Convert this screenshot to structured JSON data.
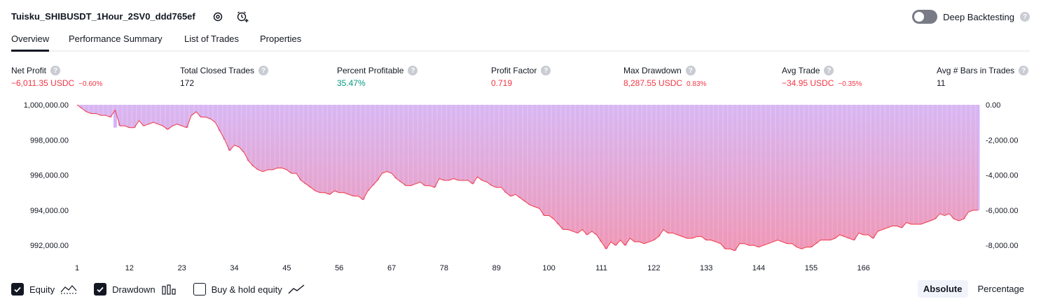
{
  "header": {
    "strategy_name": "Tuisku_SHIBUSDT_1Hour_2SV0_ddd765ef",
    "deep_backtesting_label": "Deep Backtesting",
    "deep_backtesting_enabled": false,
    "help_glyph": "?"
  },
  "tabs": [
    {
      "label": "Overview",
      "active": true
    },
    {
      "label": "Performance Summary",
      "active": false
    },
    {
      "label": "List of Trades",
      "active": false
    },
    {
      "label": "Properties",
      "active": false
    }
  ],
  "metrics": [
    {
      "label": "Net Profit",
      "value": "−6,011.35 USDC",
      "pct": "−0.60%",
      "tone": "neg"
    },
    {
      "label": "Total Closed Trades",
      "value": "172",
      "pct": "",
      "tone": "neutral"
    },
    {
      "label": "Percent Profitable",
      "value": "35.47%",
      "pct": "",
      "tone": "pos"
    },
    {
      "label": "Profit Factor",
      "value": "0.719",
      "pct": "",
      "tone": "neg"
    },
    {
      "label": "Max Drawdown",
      "value": "8,287.55 USDC",
      "pct": "0.83%",
      "tone": "neg"
    },
    {
      "label": "Avg Trade",
      "value": "−34.95 USDC",
      "pct": "−0.35%",
      "tone": "neg"
    },
    {
      "label": "Avg # Bars in Trades",
      "value": "11",
      "pct": "",
      "tone": "neutral"
    }
  ],
  "legend": {
    "equity": {
      "label": "Equity",
      "checked": true
    },
    "drawdown": {
      "label": "Drawdown",
      "checked": true
    },
    "buy_hold": {
      "label": "Buy & hold equity",
      "checked": false
    }
  },
  "mode": {
    "absolute": "Absolute",
    "percentage": "Percentage",
    "selected": "Absolute"
  },
  "icons": [
    "settings-icon",
    "alert-add-icon",
    "help-icon",
    "equity-line-icon",
    "drawdown-bars-icon",
    "buy-hold-line-icon",
    "check-icon"
  ],
  "colors": {
    "negative": "#f23645",
    "positive": "#089981",
    "equity_line": "#f23645",
    "equity_fill_top": "#d8b7f3",
    "equity_fill_bottom": "#f292ac",
    "drawdown_bar": "#d6b4f7"
  },
  "chart_data": {
    "type": "area",
    "x_label_ticks": [
      "1",
      "12",
      "23",
      "34",
      "45",
      "56",
      "67",
      "78",
      "89",
      "100",
      "111",
      "122",
      "133",
      "144",
      "155",
      "166"
    ],
    "left_axis": {
      "ticks": [
        "1,000,000.00",
        "998,000.00",
        "996,000.00",
        "994,000.00",
        "992,000.00"
      ],
      "values": [
        1000000,
        998000,
        996000,
        994000,
        992000
      ]
    },
    "right_axis": {
      "ticks": [
        "0.00",
        "-2,000.00",
        "-4,000.00",
        "-6,000.00",
        "-8,000.00"
      ],
      "values": [
        0,
        -2000,
        -4000,
        -6000,
        -8000
      ]
    },
    "ylim": [
      991500,
      1000000
    ],
    "drawdown_ylim": [
      -8500,
      0
    ],
    "series": [
      {
        "name": "Equity",
        "type": "line",
        "x_start": 1,
        "values": [
          1000000,
          999800,
          999600,
          999500,
          999500,
          999400,
          999400,
          999300,
          999700,
          998800,
          998800,
          998700,
          998700,
          999100,
          998800,
          998900,
          999000,
          998900,
          998800,
          998600,
          998800,
          998900,
          998800,
          998700,
          999400,
          999600,
          999300,
          999300,
          999200,
          999000,
          998500,
          998000,
          997400,
          997700,
          997600,
          997300,
          996800,
          996500,
          996300,
          996200,
          996300,
          996300,
          996400,
          996400,
          996300,
          996100,
          996100,
          995700,
          995500,
          995300,
          995100,
          995000,
          995000,
          994900,
          995100,
          995000,
          995000,
          994900,
          994800,
          994800,
          994600,
          995100,
          995400,
          995700,
          996100,
          996200,
          996100,
          995800,
          995600,
          995400,
          995400,
          995500,
          995600,
          995400,
          995400,
          995300,
          995800,
          995700,
          995700,
          995800,
          995700,
          995700,
          995700,
          995500,
          995900,
          995700,
          995600,
          995400,
          995300,
          995300,
          995000,
          994800,
          994900,
          994700,
          994500,
          994300,
          994200,
          994100,
          993700,
          993700,
          993500,
          993200,
          992900,
          992900,
          992800,
          992700,
          992900,
          992600,
          992800,
          992600,
          992200,
          991800,
          992200,
          992000,
          992300,
          992000,
          992400,
          992200,
          992200,
          992100,
          992200,
          992300,
          992500,
          992900,
          992700,
          992700,
          992600,
          992500,
          992400,
          992400,
          992500,
          992500,
          992300,
          992300,
          992200,
          992100,
          991800,
          991800,
          991700,
          992100,
          992100,
          992000,
          992000,
          991900,
          992000,
          992100,
          992200,
          992300,
          992200,
          992100,
          992100,
          991900,
          991800,
          991900,
          991900,
          992100,
          992300,
          992300,
          992300,
          992400,
          992600,
          992500,
          992400,
          992300,
          992700,
          992600,
          992600,
          992400,
          992800,
          992900,
          993000,
          993100,
          993100,
          993000,
          993300,
          993200,
          993200,
          993200,
          993300,
          993400,
          993500,
          993800,
          993700,
          993800,
          993500,
          993400,
          993500,
          993900,
          994000,
          994000
        ]
      },
      {
        "name": "Drawdown",
        "type": "bar",
        "x_start": 1,
        "values": [
          0,
          -200,
          -400,
          -500,
          -500,
          -600,
          -600,
          -700,
          -1300,
          -1200,
          -1200,
          -1300,
          -1300,
          -900,
          -1200,
          -1100,
          -1000,
          -1100,
          -1200,
          -1400,
          -1200,
          -1100,
          -1200,
          -1300,
          -600,
          -400,
          -700,
          -700,
          -800,
          -1000,
          -1500,
          -2000,
          -2600,
          -2300,
          -2400,
          -2700,
          -3200,
          -3500,
          -3700,
          -3800,
          -3700,
          -3700,
          -3600,
          -3600,
          -3700,
          -3900,
          -3900,
          -4300,
          -4500,
          -4700,
          -4900,
          -5000,
          -5000,
          -5100,
          -4900,
          -5000,
          -5000,
          -5100,
          -5200,
          -5200,
          -5400,
          -4900,
          -4600,
          -4300,
          -3900,
          -3800,
          -3900,
          -4200,
          -4400,
          -4600,
          -4600,
          -4500,
          -4400,
          -4600,
          -4600,
          -4700,
          -4200,
          -4300,
          -4300,
          -4200,
          -4300,
          -4300,
          -4300,
          -4500,
          -4100,
          -4300,
          -4400,
          -4600,
          -4700,
          -4700,
          -5000,
          -5200,
          -5100,
          -5300,
          -5500,
          -5700,
          -5800,
          -5900,
          -6300,
          -6300,
          -6500,
          -6800,
          -7100,
          -7100,
          -7200,
          -7300,
          -7100,
          -7400,
          -7200,
          -7400,
          -7800,
          -8200,
          -7800,
          -8000,
          -7700,
          -8000,
          -7600,
          -7800,
          -7800,
          -7900,
          -7800,
          -7700,
          -7500,
          -7100,
          -7300,
          -7300,
          -7400,
          -7500,
          -7600,
          -7600,
          -7500,
          -7500,
          -7700,
          -7700,
          -7800,
          -7900,
          -8200,
          -8200,
          -8300,
          -7900,
          -7900,
          -8000,
          -8000,
          -8100,
          -8000,
          -7900,
          -7800,
          -7700,
          -7800,
          -7900,
          -7900,
          -8100,
          -8200,
          -8100,
          -8100,
          -7900,
          -7700,
          -7700,
          -7700,
          -7600,
          -7400,
          -7500,
          -7600,
          -7700,
          -7300,
          -7400,
          -7400,
          -7600,
          -7200,
          -7100,
          -7000,
          -6900,
          -6900,
          -7000,
          -6700,
          -6800,
          -6800,
          -6800,
          -6700,
          -6600,
          -6500,
          -6200,
          -6300,
          -6200,
          -6500,
          -6600,
          -6500,
          -6100,
          -6000,
          -6000
        ]
      }
    ]
  }
}
